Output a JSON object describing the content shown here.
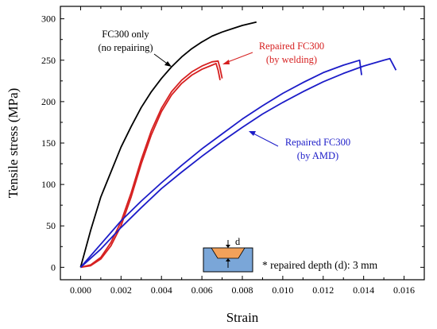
{
  "chart_data": {
    "type": "line",
    "title": "",
    "xlabel": "Strain",
    "ylabel": "Tensile stress (MPa)",
    "xlim": [
      -0.001,
      0.017
    ],
    "ylim": [
      -15,
      315
    ],
    "x_ticks": [
      "0.000",
      "0.002",
      "0.004",
      "0.006",
      "0.008",
      "0.010",
      "0.012",
      "0.014",
      "0.016"
    ],
    "y_ticks": [
      "0",
      "50",
      "100",
      "150",
      "200",
      "250",
      "300"
    ],
    "grid": false,
    "series": [
      {
        "color": "#000000",
        "points": [
          [
            0.0,
            0
          ],
          [
            0.0005,
            45
          ],
          [
            0.001,
            85
          ],
          [
            0.0015,
            115
          ],
          [
            0.002,
            145
          ],
          [
            0.0025,
            170
          ],
          [
            0.003,
            193
          ],
          [
            0.0035,
            212
          ],
          [
            0.004,
            228
          ],
          [
            0.0045,
            242
          ],
          [
            0.005,
            254
          ],
          [
            0.0055,
            264
          ],
          [
            0.006,
            272
          ],
          [
            0.0065,
            279
          ],
          [
            0.007,
            284
          ],
          [
            0.0075,
            288
          ],
          [
            0.008,
            292
          ],
          [
            0.0087,
            296
          ]
        ]
      },
      {
        "color": "#d62020",
        "points": [
          [
            0.0,
            0
          ],
          [
            0.0005,
            3
          ],
          [
            0.001,
            12
          ],
          [
            0.0015,
            30
          ],
          [
            0.002,
            55
          ],
          [
            0.0025,
            90
          ],
          [
            0.003,
            130
          ],
          [
            0.0035,
            165
          ],
          [
            0.004,
            192
          ],
          [
            0.0045,
            212
          ],
          [
            0.005,
            226
          ],
          [
            0.0055,
            236
          ],
          [
            0.006,
            243
          ],
          [
            0.0065,
            248
          ],
          [
            0.0068,
            249
          ],
          [
            0.0069,
            240
          ],
          [
            0.007,
            228
          ]
        ]
      },
      {
        "color": "#d62020",
        "points": [
          [
            0.0,
            0
          ],
          [
            0.0005,
            2
          ],
          [
            0.001,
            10
          ],
          [
            0.0015,
            26
          ],
          [
            0.002,
            50
          ],
          [
            0.0025,
            85
          ],
          [
            0.003,
            125
          ],
          [
            0.0035,
            160
          ],
          [
            0.004,
            188
          ],
          [
            0.0045,
            208
          ],
          [
            0.005,
            222
          ],
          [
            0.0055,
            232
          ],
          [
            0.006,
            239
          ],
          [
            0.0065,
            244
          ],
          [
            0.0067,
            246
          ],
          [
            0.0068,
            238
          ],
          [
            0.0069,
            226
          ]
        ]
      },
      {
        "color": "#1c1cc8",
        "points": [
          [
            0.0,
            0
          ],
          [
            0.001,
            28
          ],
          [
            0.002,
            56
          ],
          [
            0.003,
            80
          ],
          [
            0.004,
            102
          ],
          [
            0.005,
            123
          ],
          [
            0.006,
            143
          ],
          [
            0.007,
            161
          ],
          [
            0.008,
            179
          ],
          [
            0.009,
            195
          ],
          [
            0.01,
            210
          ],
          [
            0.011,
            223
          ],
          [
            0.012,
            235
          ],
          [
            0.013,
            244
          ],
          [
            0.0138,
            250
          ],
          [
            0.0139,
            232
          ]
        ]
      },
      {
        "color": "#1c1cc8",
        "points": [
          [
            0.0,
            0
          ],
          [
            0.001,
            22
          ],
          [
            0.002,
            48
          ],
          [
            0.003,
            72
          ],
          [
            0.004,
            95
          ],
          [
            0.005,
            115
          ],
          [
            0.006,
            134
          ],
          [
            0.007,
            152
          ],
          [
            0.008,
            169
          ],
          [
            0.009,
            185
          ],
          [
            0.01,
            199
          ],
          [
            0.011,
            212
          ],
          [
            0.012,
            224
          ],
          [
            0.013,
            234
          ],
          [
            0.014,
            243
          ],
          [
            0.015,
            250
          ],
          [
            0.0153,
            252
          ],
          [
            0.0156,
            238
          ]
        ]
      }
    ],
    "annotations": [
      {
        "lines": [
          "FC300 only",
          "(no repairing)"
        ],
        "color": "#000000"
      },
      {
        "lines": [
          "Repaired FC300",
          "(by welding)"
        ],
        "color": "#d62020"
      },
      {
        "lines": [
          "Repaired FC300",
          "(by AMD)"
        ],
        "color": "#1c1cc8"
      }
    ],
    "note": "* repaired depth (d): 3 mm",
    "inset_label": "d"
  }
}
